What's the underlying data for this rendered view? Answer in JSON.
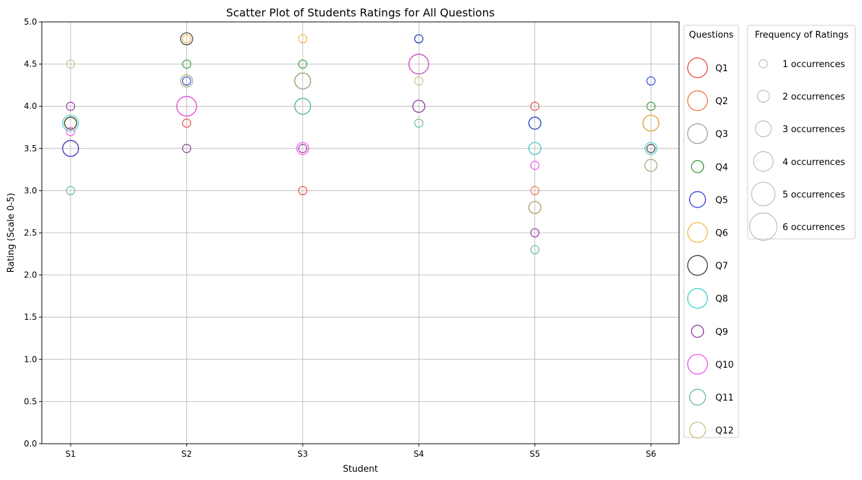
{
  "chart_data": {
    "type": "scatter",
    "title": "Scatter Plot of Students Ratings for All Questions",
    "xlabel": "Student",
    "ylabel": "Rating (Scale 0-5)",
    "categories": [
      "S1",
      "S2",
      "S3",
      "S4",
      "S5",
      "S6"
    ],
    "ylim": [
      0,
      5.0
    ],
    "yticks": [
      "0.0",
      "0.5",
      "1.0",
      "1.5",
      "2.0",
      "2.5",
      "3.0",
      "3.5",
      "4.0",
      "4.5",
      "5.0"
    ],
    "grid": true,
    "marker_fill": "none",
    "series": [
      {
        "name": "Q1",
        "color": "#e8413a",
        "values": [
          3.5,
          3.8,
          3.0,
          4.5,
          4.0,
          3.8
        ],
        "freq": [
          3,
          1,
          1,
          4,
          1,
          3
        ]
      },
      {
        "name": "Q2",
        "color": "#f26d43",
        "values": [
          3.5,
          4.0,
          4.3,
          4.5,
          3.0,
          3.8
        ],
        "freq": [
          3,
          4,
          3,
          4,
          1,
          3
        ]
      },
      {
        "name": "Q3",
        "color": "#9ba1ab",
        "values": [
          3.8,
          4.0,
          4.0,
          4.0,
          3.5,
          3.8
        ],
        "freq": [
          2,
          4,
          3,
          2,
          2,
          3
        ]
      },
      {
        "name": "Q4",
        "color": "#2f9a36",
        "values": [
          3.8,
          4.5,
          4.5,
          4.8,
          3.8,
          4.0
        ],
        "freq": [
          2,
          1,
          1,
          1,
          2,
          1
        ]
      },
      {
        "name": "Q5",
        "color": "#2e3dde",
        "values": [
          3.5,
          4.3,
          4.3,
          4.8,
          3.8,
          4.3
        ],
        "freq": [
          3,
          1,
          3,
          1,
          2,
          1
        ]
      },
      {
        "name": "Q6",
        "color": "#f5b63c",
        "values": [
          3.8,
          4.8,
          4.8,
          4.5,
          2.8,
          3.8
        ],
        "freq": [
          2,
          1,
          1,
          4,
          2,
          3
        ]
      },
      {
        "name": "Q7",
        "color": "#363636",
        "values": [
          3.8,
          4.8,
          4.3,
          4.5,
          2.8,
          3.5
        ],
        "freq": [
          2,
          2,
          3,
          4,
          2,
          1
        ]
      },
      {
        "name": "Q8",
        "color": "#3fcfcb",
        "values": [
          3.8,
          4.3,
          4.0,
          4.5,
          3.5,
          3.5
        ],
        "freq": [
          3,
          2,
          3,
          4,
          2,
          2
        ]
      },
      {
        "name": "Q9",
        "color": "#8e2f9e",
        "values": [
          4.0,
          3.5,
          3.5,
          4.0,
          2.5,
          3.3
        ],
        "freq": [
          1,
          1,
          1,
          2,
          1,
          2
        ]
      },
      {
        "name": "Q10",
        "color": "#ee4fe6",
        "values": [
          3.7,
          4.0,
          3.5,
          4.5,
          3.3,
          3.3
        ],
        "freq": [
          1,
          4,
          2,
          4,
          1,
          2
        ]
      },
      {
        "name": "Q11",
        "color": "#5dbd8f",
        "values": [
          3.0,
          4.3,
          4.0,
          3.8,
          2.3,
          3.3
        ],
        "freq": [
          1,
          2,
          3,
          1,
          1,
          2
        ]
      },
      {
        "name": "Q12",
        "color": "#cbbd86",
        "values": [
          4.5,
          4.3,
          4.3,
          4.3,
          2.8,
          3.3
        ],
        "freq": [
          1,
          2,
          3,
          1,
          2,
          2
        ]
      }
    ],
    "legend_questions_title": "Questions",
    "legend_frequency_title": "Frequency of Ratings",
    "legend_frequency": [
      {
        "count": 1,
        "label": "1 occurrences"
      },
      {
        "count": 2,
        "label": "2 occurrences"
      },
      {
        "count": 3,
        "label": "3 occurrences"
      },
      {
        "count": 4,
        "label": "4 occurrences"
      },
      {
        "count": 5,
        "label": "5 occurrences"
      },
      {
        "count": 6,
        "label": "6 occurrences"
      }
    ],
    "legend_placement": "right, outside plot"
  }
}
